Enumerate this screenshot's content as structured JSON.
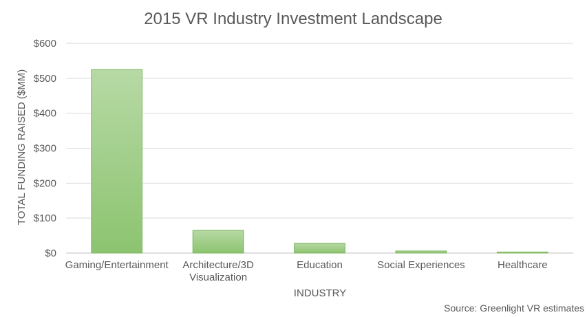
{
  "chart_data": {
    "type": "bar",
    "title": "2015 VR Industry Investment Landscape",
    "xlabel": "INDUSTRY",
    "ylabel": "TOTAL FUNDING RAISED ($MM)",
    "categories": [
      [
        "Gaming/Entertainment"
      ],
      [
        "Architecture/3D",
        "Visualization"
      ],
      [
        "Education"
      ],
      [
        "Social Experiences"
      ],
      [
        "Healthcare"
      ]
    ],
    "values": [
      525,
      65,
      28,
      6,
      3
    ],
    "ylim": [
      0,
      600
    ],
    "yticks": [
      0,
      100,
      200,
      300,
      400,
      500,
      600
    ],
    "ytick_labels": [
      "$0",
      "$100",
      "$200",
      "$300",
      "$400",
      "$500",
      "$600"
    ],
    "grid": true,
    "legend": "none",
    "source_note": "Source:  Greenlight VR estimates",
    "colors": {
      "bar_top": "#b7d9a5",
      "bar_bottom": "#8cc470",
      "bar_border": "#78b35a",
      "grid": "#d9d9d9",
      "axis": "#bfbfbf",
      "title": "#595959",
      "text": "#595959"
    }
  }
}
